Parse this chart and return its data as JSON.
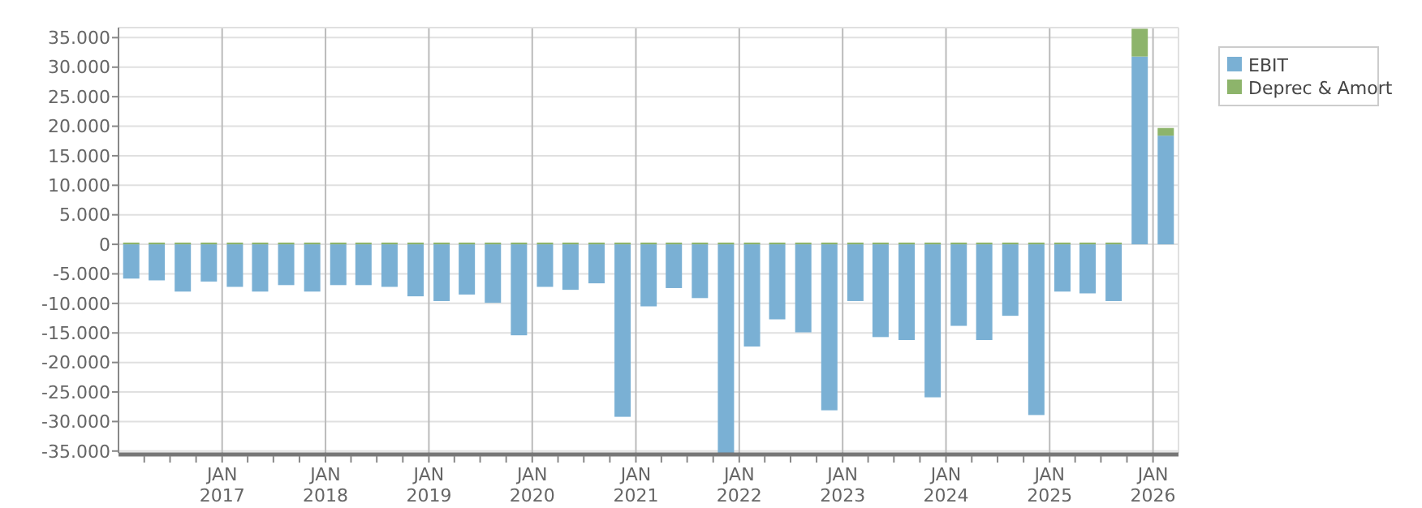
{
  "chart_data": {
    "type": "bar",
    "stacked": true,
    "x": [
      "2016-02-15",
      "2016-05-15",
      "2016-08-15",
      "2016-11-15",
      "2017-02-15",
      "2017-05-15",
      "2017-08-15",
      "2017-11-15",
      "2018-02-15",
      "2018-05-15",
      "2018-08-15",
      "2018-11-15",
      "2019-02-15",
      "2019-05-15",
      "2019-08-15",
      "2019-11-15",
      "2020-02-15",
      "2020-05-15",
      "2020-08-15",
      "2020-11-15",
      "2021-02-15",
      "2021-05-15",
      "2021-08-15",
      "2021-11-15",
      "2022-02-15",
      "2022-05-15",
      "2022-08-15",
      "2022-11-15",
      "2023-02-15",
      "2023-05-15",
      "2023-08-15",
      "2023-11-15",
      "2024-02-15",
      "2024-05-15",
      "2024-08-15",
      "2024-11-15",
      "2025-02-15",
      "2025-05-15",
      "2025-08-15",
      "2025-11-15",
      "2026-02-15"
    ],
    "series": [
      {
        "name": "EBIT",
        "color": "#7ab0d4",
        "values": [
          -5800,
          -6100,
          -8000,
          -6300,
          -7200,
          -8000,
          -6900,
          -8000,
          -6900,
          -6900,
          -7200,
          -8800,
          -9600,
          -8500,
          -9900,
          -15400,
          -7200,
          -7700,
          -6600,
          -29200,
          -10500,
          -7400,
          -9100,
          -35300,
          -17300,
          -12700,
          -14900,
          -28100,
          -9600,
          -15700,
          -16200,
          -25900,
          -13800,
          -16200,
          -12100,
          -28900,
          -8000,
          -8300,
          -9600,
          31800,
          18400
        ]
      },
      {
        "name": "Deprec & Amort",
        "color": "#8db46b",
        "values": [
          300,
          300,
          300,
          300,
          300,
          300,
          300,
          300,
          300,
          300,
          300,
          300,
          300,
          300,
          300,
          300,
          300,
          300,
          300,
          300,
          300,
          300,
          300,
          300,
          300,
          300,
          300,
          300,
          300,
          300,
          300,
          300,
          300,
          300,
          300,
          300,
          300,
          300,
          300,
          4700,
          1300
        ]
      }
    ],
    "xlim": [
      "2016-01-01",
      "2026-04-01"
    ],
    "xticks": [
      {
        "value": "2016-04-01",
        "label": null
      },
      {
        "value": "2016-07-01",
        "label": null
      },
      {
        "value": "2016-10-01",
        "label": null
      },
      {
        "value": "2017-01-01",
        "label": "JAN 2017"
      },
      {
        "value": "2017-04-01",
        "label": null
      },
      {
        "value": "2017-07-01",
        "label": null
      },
      {
        "value": "2017-10-01",
        "label": null
      },
      {
        "value": "2018-01-01",
        "label": "JAN 2018"
      },
      {
        "value": "2018-04-01",
        "label": null
      },
      {
        "value": "2018-07-01",
        "label": null
      },
      {
        "value": "2018-10-01",
        "label": null
      },
      {
        "value": "2019-01-01",
        "label": "JAN 2019"
      },
      {
        "value": "2019-04-01",
        "label": null
      },
      {
        "value": "2019-07-01",
        "label": null
      },
      {
        "value": "2019-10-01",
        "label": null
      },
      {
        "value": "2020-01-01",
        "label": "JAN 2020"
      },
      {
        "value": "2020-04-01",
        "label": null
      },
      {
        "value": "2020-07-01",
        "label": null
      },
      {
        "value": "2020-10-01",
        "label": null
      },
      {
        "value": "2021-01-01",
        "label": "JAN 2021"
      },
      {
        "value": "2021-04-01",
        "label": null
      },
      {
        "value": "2021-07-01",
        "label": null
      },
      {
        "value": "2021-10-01",
        "label": null
      },
      {
        "value": "2022-01-01",
        "label": "JAN 2022"
      },
      {
        "value": "2022-04-01",
        "label": null
      },
      {
        "value": "2022-07-01",
        "label": null
      },
      {
        "value": "2022-10-01",
        "label": null
      },
      {
        "value": "2023-01-01",
        "label": "JAN 2023"
      },
      {
        "value": "2023-04-01",
        "label": null
      },
      {
        "value": "2023-07-01",
        "label": null
      },
      {
        "value": "2023-10-01",
        "label": null
      },
      {
        "value": "2024-01-01",
        "label": "JAN 2024"
      },
      {
        "value": "2024-04-01",
        "label": null
      },
      {
        "value": "2024-07-01",
        "label": null
      },
      {
        "value": "2024-10-01",
        "label": null
      },
      {
        "value": "2025-01-01",
        "label": "JAN 2025"
      },
      {
        "value": "2025-04-01",
        "label": null
      },
      {
        "value": "2025-07-01",
        "label": null
      },
      {
        "value": "2025-10-01",
        "label": null
      },
      {
        "value": "2026-01-01",
        "label": "JAN 2026"
      }
    ],
    "ylim": [
      -35300,
      36700
    ],
    "yticks": [
      {
        "value": -35000,
        "label": "-35.000"
      },
      {
        "value": -30000,
        "label": "-30.000"
      },
      {
        "value": -25000,
        "label": "-25.000"
      },
      {
        "value": -20000,
        "label": "-20.000"
      },
      {
        "value": -15000,
        "label": "-15.000"
      },
      {
        "value": -10000,
        "label": "-10.000"
      },
      {
        "value": -5000,
        "label": "-5.000"
      },
      {
        "value": 0,
        "label": "0"
      },
      {
        "value": 5000,
        "label": "5.000"
      },
      {
        "value": 10000,
        "label": "10.000"
      },
      {
        "value": 15000,
        "label": "15.000"
      },
      {
        "value": 20000,
        "label": "20.000"
      },
      {
        "value": 25000,
        "label": "25.000"
      },
      {
        "value": 30000,
        "label": "30.000"
      },
      {
        "value": 35000,
        "label": "35.000"
      }
    ],
    "grid": true,
    "legend": "top right"
  }
}
